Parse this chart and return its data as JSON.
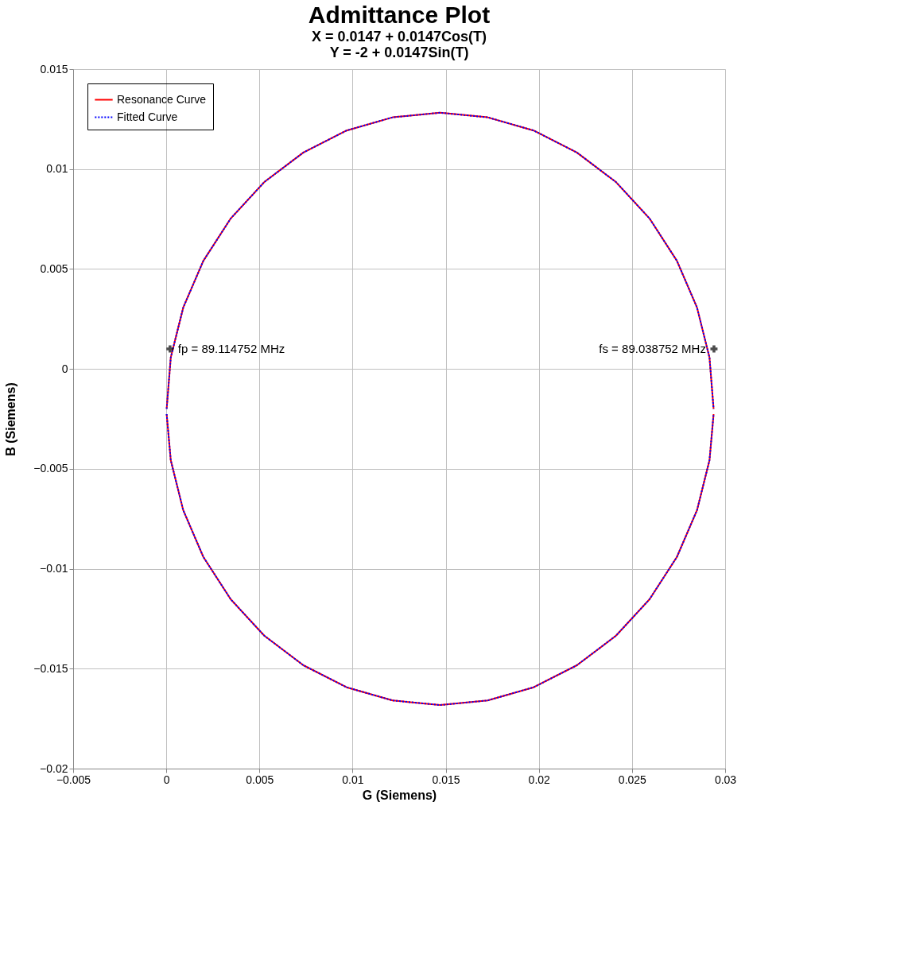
{
  "chart_data": {
    "type": "line",
    "title": "Admittance Plot",
    "subtitle": "X = 0.0147 + 0.0147Cos(T)\nY = -2 + 0.0147Sin(T)",
    "xlabel": "G (Siemens)",
    "ylabel": "B (Siemens)",
    "xlim": [
      -0.005,
      0.03
    ],
    "xticks": [
      -0.005,
      0,
      0.005,
      0.01,
      0.015,
      0.02,
      0.025,
      0.03
    ],
    "ylim": [
      -0.02,
      0.015
    ],
    "yticks": [
      -0.02,
      -0.015,
      -0.01,
      -0.005,
      0,
      0.005,
      0.01,
      0.015
    ],
    "grid": true,
    "legend": "top left",
    "marker": "none",
    "series": [
      {
        "name": "Resonance Curve",
        "color": "#ff0000",
        "line_style": "solid",
        "x": [
          2e-05,
          0.00024,
          0.00091,
          0.00199,
          0.00346,
          0.00526,
          0.00736,
          0.00968,
          0.01215,
          0.0147,
          0.01725,
          0.01972,
          0.02204,
          0.02414,
          0.02594,
          0.02741,
          0.02849,
          0.02916,
          0.02938
        ],
        "values": [
          -0.002,
          0.00057,
          0.00307,
          0.00541,
          0.00753,
          0.00935,
          0.01083,
          0.01193,
          0.01259,
          0.01282,
          0.01259,
          0.01193,
          0.01083,
          0.00935,
          0.00753,
          0.00541,
          0.00307,
          0.00057,
          -0.002
        ]
      },
      {
        "color": "#ff0000",
        "line_style": "solid",
        "x": [
          2e-05,
          0.00024,
          0.00091,
          0.00199,
          0.00346,
          0.00526,
          0.00736,
          0.00968,
          0.01215,
          0.0147,
          0.01725,
          0.01972,
          0.02204,
          0.02414,
          0.02594,
          0.02741,
          0.02849,
          0.02916,
          0.02938
        ],
        "values": [
          -0.00226,
          -0.00457,
          -0.00707,
          -0.00941,
          -0.01153,
          -0.01335,
          -0.01483,
          -0.01593,
          -0.01659,
          -0.01682,
          -0.01659,
          -0.01593,
          -0.01483,
          -0.01335,
          -0.01153,
          -0.00941,
          -0.00707,
          -0.00457,
          -0.00226
        ]
      },
      {
        "name": "Fitted Curve",
        "color": "#0000ff",
        "line_style": "dotted",
        "x": [
          2e-05,
          0.00024,
          0.00091,
          0.00199,
          0.00346,
          0.00526,
          0.00736,
          0.00968,
          0.01215,
          0.0147,
          0.01725,
          0.01972,
          0.02204,
          0.02414,
          0.02594,
          0.02741,
          0.02849,
          0.02916,
          0.02938
        ],
        "values": [
          -0.002,
          0.00057,
          0.00307,
          0.00541,
          0.00753,
          0.00935,
          0.01083,
          0.01193,
          0.01259,
          0.01282,
          0.01259,
          0.01193,
          0.01083,
          0.00935,
          0.00753,
          0.00541,
          0.00307,
          0.00057,
          -0.002
        ]
      },
      {
        "color": "#0000ff",
        "line_style": "dotted",
        "x": [
          2e-05,
          0.00024,
          0.00091,
          0.00199,
          0.00346,
          0.00526,
          0.00736,
          0.00968,
          0.01215,
          0.0147,
          0.01725,
          0.01972,
          0.02204,
          0.02414,
          0.02594,
          0.02741,
          0.02849,
          0.02916,
          0.02938
        ],
        "values": [
          -0.00226,
          -0.00457,
          -0.00707,
          -0.00941,
          -0.01153,
          -0.01335,
          -0.01483,
          -0.01593,
          -0.01659,
          -0.01682,
          -0.01659,
          -0.01593,
          -0.01483,
          -0.01335,
          -0.01153,
          -0.00941,
          -0.00707,
          -0.00457,
          -0.00226
        ]
      }
    ],
    "annotations": [
      {
        "text": "fp = 89.114752 MHz",
        "x": 0.0002,
        "y": 0.001
      },
      {
        "text": "fs = 89.038752 MHz",
        "x": 0.0294,
        "y": 0.001
      }
    ]
  }
}
